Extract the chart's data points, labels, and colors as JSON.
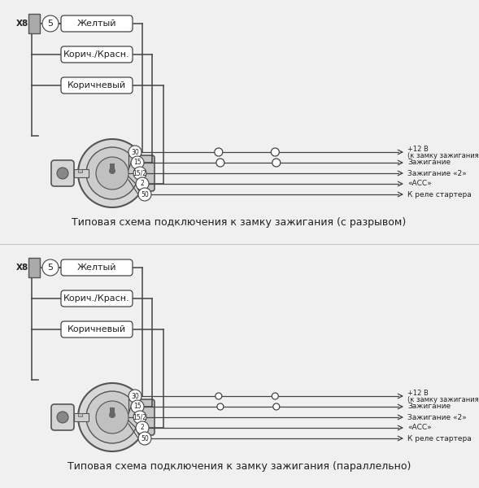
{
  "bg_color": "#f0f0f0",
  "line_color": "#444444",
  "text_color": "#222222",
  "box_fill": "#ffffff",
  "box_edge": "#444444",
  "diagram1": {
    "title": "Типовая схема подключения к замку зажигания (с разрывом)",
    "wires": [
      "Желтый",
      "Корич./Красн.",
      "Коричневый"
    ],
    "pins": [
      "30",
      "15",
      "15/2",
      "2",
      "50"
    ],
    "labels": [
      "+12 В\n(к замку зажигания)",
      "Зажигание",
      "Зажигание «2»",
      "«АСС»",
      "К реле стартера"
    ],
    "has_break": true,
    "break_connections": [
      0,
      1
    ],
    "wire_to_pin": [
      0,
      1,
      3
    ]
  },
  "diagram2": {
    "title": "Типовая схема подключения к замку зажигания (параллельно)",
    "wires": [
      "Желтый",
      "Корич./Красн.",
      "Коричневый"
    ],
    "pins": [
      "30",
      "15",
      "15/2",
      "2",
      "50"
    ],
    "labels": [
      "+12 В\n(к замку зажигания)",
      "Зажигание",
      "Зажигание «2»",
      "«АСС»",
      "К реле стартера"
    ],
    "has_break": false,
    "break_connections": [
      0,
      1
    ],
    "wire_to_pin": [
      0,
      1,
      3
    ]
  }
}
